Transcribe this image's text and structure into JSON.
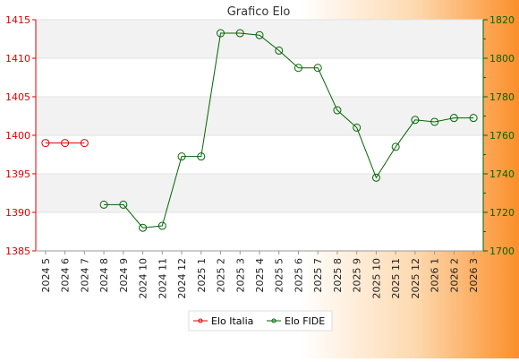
{
  "chart_data": {
    "type": "line",
    "title": "Grafico Elo",
    "categories": [
      "2024 5",
      "2024 6",
      "2024 7",
      "2024 8",
      "2024 9",
      "2024 10",
      "2024 11",
      "2024 12",
      "2025 1",
      "2025 2",
      "2025 3",
      "2025 4",
      "2025 5",
      "2025 6",
      "2025 7",
      "2025 8",
      "2025 9",
      "2025 10",
      "2025 11",
      "2025 12",
      "2026 1",
      "2026 2",
      "2026 3"
    ],
    "y_left": {
      "min": 1385,
      "max": 1415,
      "ticks": [
        1385,
        1390,
        1395,
        1400,
        1405,
        1410,
        1415
      ]
    },
    "y_right": {
      "min": 1700,
      "max": 1820,
      "ticks": [
        1700,
        1720,
        1740,
        1760,
        1780,
        1800,
        1820
      ]
    },
    "grid": true,
    "legend_position": "bottom-center",
    "series": [
      {
        "name": "Elo Italia",
        "axis": "left",
        "color": "#dd0000",
        "values": [
          1399,
          1399,
          1399,
          null,
          null,
          null,
          null,
          null,
          null,
          null,
          null,
          null,
          null,
          null,
          null,
          null,
          null,
          null,
          null,
          null,
          null,
          null,
          null
        ]
      },
      {
        "name": "Elo FIDE",
        "axis": "right",
        "color": "#006600",
        "values": [
          null,
          null,
          null,
          1724,
          1724,
          1712,
          1713,
          1749,
          1749,
          1813,
          1813,
          1812,
          1804,
          1795,
          1795,
          1773,
          1764,
          1738,
          1754,
          1768,
          1767,
          1769,
          1769
        ]
      }
    ]
  },
  "legend": {
    "items": [
      {
        "label": "Elo Italia",
        "color": "#dd0000"
      },
      {
        "label": "Elo FIDE",
        "color": "#006600"
      }
    ]
  }
}
